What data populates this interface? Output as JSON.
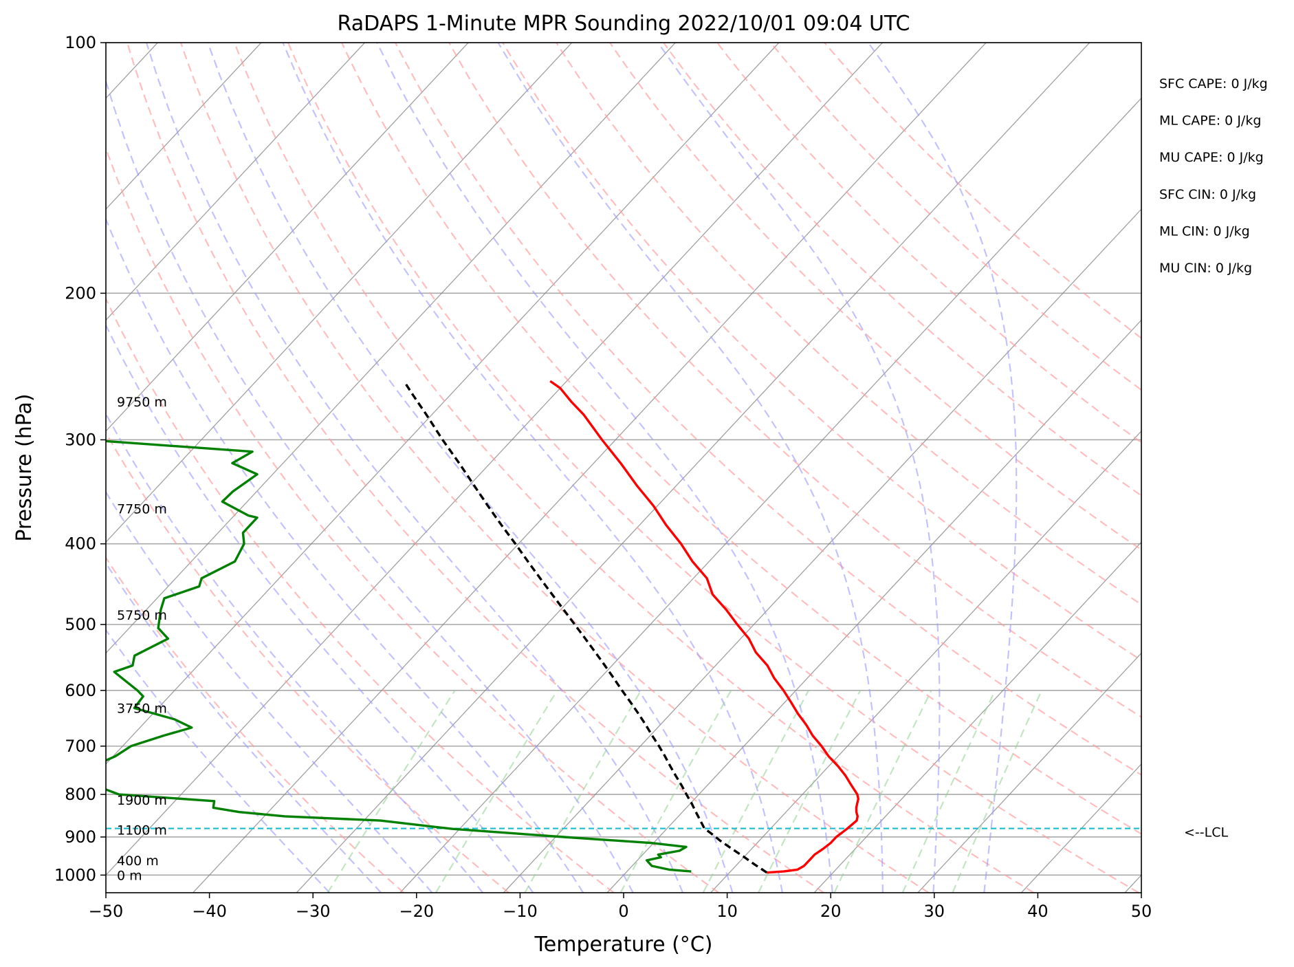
{
  "chart_data": {
    "type": "line",
    "title": "RaDAPS 1-Minute MPR Sounding 2022/10/01 09:04 UTC",
    "xlabel": "Temperature (°C)",
    "ylabel": "Pressure (hPa)",
    "xlim": [
      -50,
      50
    ],
    "ylim": [
      1050,
      100
    ],
    "y_scale": "log",
    "skew_per_log_pressure_decade": 75,
    "grid": true,
    "x_ticks": [
      -50,
      -40,
      -30,
      -20,
      -10,
      0,
      10,
      20,
      30,
      40,
      50
    ],
    "x_tick_labels": [
      "−50",
      "−40",
      "−30",
      "−20",
      "−10",
      "0",
      "10",
      "20",
      "30",
      "40",
      "50"
    ],
    "y_ticks": [
      100,
      200,
      300,
      400,
      500,
      600,
      700,
      800,
      900,
      1000
    ],
    "y_tick_labels": [
      "100",
      "200",
      "300",
      "400",
      "500",
      "600",
      "700",
      "800",
      "900",
      "1000"
    ],
    "series": [
      {
        "role": "temperature",
        "color": "#ff0000",
        "points": [
          [
            993,
            13.6
          ],
          [
            990,
            15.1
          ],
          [
            985,
            16.3
          ],
          [
            975,
            16.6
          ],
          [
            960,
            16.6
          ],
          [
            945,
            16.6
          ],
          [
            930,
            16.9
          ],
          [
            915,
            17.1
          ],
          [
            900,
            17.1
          ],
          [
            880,
            17.4
          ],
          [
            860,
            17.6
          ],
          [
            850,
            17.3
          ],
          [
            840,
            16.8
          ],
          [
            830,
            16.4
          ],
          [
            820,
            16.1
          ],
          [
            810,
            15.8
          ],
          [
            800,
            15.3
          ],
          [
            780,
            13.9
          ],
          [
            760,
            12.5
          ],
          [
            740,
            10.9
          ],
          [
            720,
            9.1
          ],
          [
            700,
            7.5
          ],
          [
            680,
            5.7
          ],
          [
            660,
            4.1
          ],
          [
            640,
            2.3
          ],
          [
            620,
            0.6
          ],
          [
            600,
            -1.2
          ],
          [
            580,
            -3.2
          ],
          [
            560,
            -5.0
          ],
          [
            540,
            -7.3
          ],
          [
            520,
            -9.2
          ],
          [
            500,
            -11.6
          ],
          [
            480,
            -14.0
          ],
          [
            460,
            -16.7
          ],
          [
            440,
            -18.7
          ],
          [
            420,
            -21.6
          ],
          [
            400,
            -24.3
          ],
          [
            380,
            -27.4
          ],
          [
            360,
            -30.4
          ],
          [
            340,
            -33.9
          ],
          [
            320,
            -37.4
          ],
          [
            300,
            -41.3
          ],
          [
            280,
            -45.3
          ],
          [
            270,
            -47.7
          ],
          [
            260,
            -50.0
          ],
          [
            255,
            -51.6
          ]
        ]
      },
      {
        "role": "dewpoint",
        "color": "#008000",
        "points": [
          [
            990,
            6.2
          ],
          [
            985,
            3.9
          ],
          [
            975,
            1.9
          ],
          [
            960,
            0.9
          ],
          [
            952,
            2.0
          ],
          [
            945,
            1.5
          ],
          [
            935,
            3.2
          ],
          [
            925,
            3.5
          ],
          [
            915,
            -0.2
          ],
          [
            900,
            -9.2
          ],
          [
            880,
            -20.7
          ],
          [
            860,
            -28.4
          ],
          [
            850,
            -38.0
          ],
          [
            840,
            -42.8
          ],
          [
            830,
            -45.7
          ],
          [
            815,
            -46.2
          ],
          [
            800,
            -56.0
          ],
          [
            780,
            -59.2
          ],
          [
            760,
            -60.7
          ],
          [
            740,
            -61.1
          ],
          [
            720,
            -59.8
          ],
          [
            700,
            -59.2
          ],
          [
            680,
            -57.0
          ],
          [
            665,
            -55.0
          ],
          [
            650,
            -57.4
          ],
          [
            630,
            -62.3
          ],
          [
            610,
            -62.5
          ],
          [
            600,
            -63.6
          ],
          [
            570,
            -67.5
          ],
          [
            560,
            -66.3
          ],
          [
            545,
            -67.0
          ],
          [
            520,
            -65.3
          ],
          [
            505,
            -67.2
          ],
          [
            480,
            -68.6
          ],
          [
            465,
            -69.3
          ],
          [
            450,
            -67.0
          ],
          [
            440,
            -67.5
          ],
          [
            420,
            -65.8
          ],
          [
            400,
            -66.5
          ],
          [
            388,
            -67.6
          ],
          [
            372,
            -67.6
          ],
          [
            370,
            -68.6
          ],
          [
            356,
            -72.4
          ],
          [
            346,
            -72.3
          ],
          [
            330,
            -71.5
          ],
          [
            320,
            -74.9
          ],
          [
            310,
            -74.0
          ],
          [
            300,
            -91.0
          ],
          [
            298,
            -107.0
          ],
          [
            297,
            -115.0
          ]
        ]
      },
      {
        "role": "parcel_profile",
        "color": "#000000",
        "dashed": true,
        "points": [
          [
            993,
            13.6
          ],
          [
            970,
            11.6
          ],
          [
            950,
            9.9
          ],
          [
            930,
            8.1
          ],
          [
            910,
            6.3
          ],
          [
            890,
            4.6
          ],
          [
            879,
            3.6
          ],
          [
            860,
            2.5
          ],
          [
            840,
            1.3
          ],
          [
            820,
            0.1
          ],
          [
            800,
            -1.2
          ],
          [
            780,
            -2.5
          ],
          [
            760,
            -3.9
          ],
          [
            740,
            -5.3
          ],
          [
            720,
            -6.7
          ],
          [
            700,
            -8.2
          ],
          [
            680,
            -9.8
          ],
          [
            660,
            -11.4
          ],
          [
            640,
            -13.1
          ],
          [
            620,
            -14.9
          ],
          [
            600,
            -16.8
          ],
          [
            580,
            -18.7
          ],
          [
            560,
            -20.7
          ],
          [
            540,
            -22.8
          ],
          [
            520,
            -25.0
          ],
          [
            500,
            -27.3
          ],
          [
            480,
            -29.7
          ],
          [
            460,
            -32.2
          ],
          [
            440,
            -34.8
          ],
          [
            420,
            -37.5
          ],
          [
            400,
            -40.3
          ],
          [
            380,
            -43.3
          ],
          [
            360,
            -46.4
          ],
          [
            340,
            -49.6
          ],
          [
            320,
            -53.0
          ],
          [
            300,
            -56.7
          ],
          [
            280,
            -60.5
          ],
          [
            265,
            -63.6
          ],
          [
            257,
            -65.3
          ]
        ]
      }
    ],
    "reference_lines": {
      "isotherms": {
        "interval_celsius": 10,
        "color": "#808080"
      },
      "dry_adiabats": {
        "style": "dashed",
        "color": "#ff9999",
        "start_kelvin": 250,
        "step_kelvin": 10,
        "count": 18
      },
      "moist_adiabats": {
        "style": "dashed",
        "color": "#9999ff",
        "start_celsius_at_1000": -30,
        "step_celsius": 5,
        "count": 14
      },
      "mixing_ratio_lines_g_per_kg": {
        "style": "dashed",
        "color": "#8fcf8f",
        "values": [
          0.4,
          1,
          2,
          4,
          7,
          10,
          16,
          24,
          32
        ],
        "top_pressure": 600
      }
    },
    "lcl": {
      "pressure": 879,
      "label": "<--LCL",
      "color": "#17becf"
    },
    "height_labels": [
      {
        "text": "9750 m",
        "pressure": 270
      },
      {
        "text": "7750 m",
        "pressure": 363
      },
      {
        "text": "5750 m",
        "pressure": 487
      },
      {
        "text": "3750 m",
        "pressure": 630
      },
      {
        "text": "1900 m",
        "pressure": 812
      },
      {
        "text": "1100 m",
        "pressure": 882
      },
      {
        "text": "400 m",
        "pressure": 960
      },
      {
        "text": "0 m",
        "pressure": 1000
      }
    ],
    "stats": [
      {
        "label": "SFC CAPE: 0 J/kg"
      },
      {
        "label": "ML CAPE: 0 J/kg"
      },
      {
        "label": "MU CAPE: 0 J/kg"
      },
      {
        "label": "SFC CIN: 0 J/kg"
      },
      {
        "label": "ML CIN: 0 J/kg"
      },
      {
        "label": "MU CIN: 0 J/kg"
      }
    ]
  }
}
